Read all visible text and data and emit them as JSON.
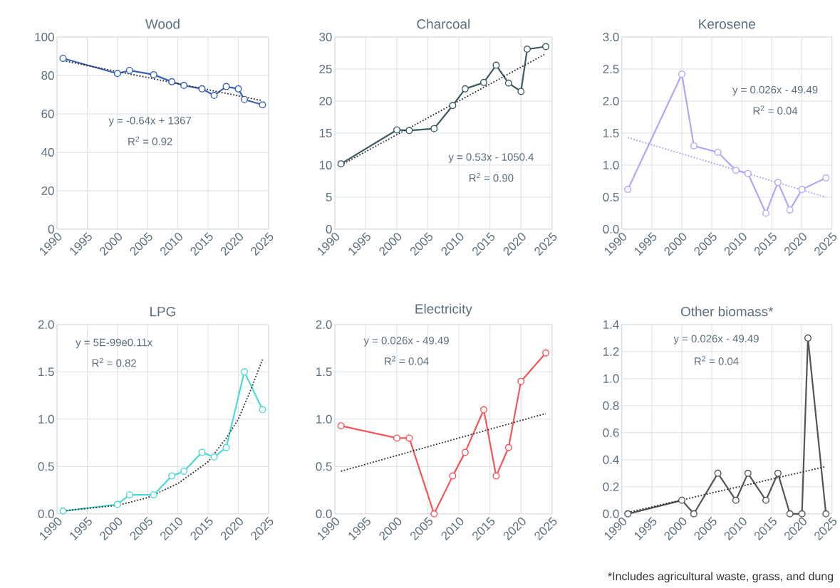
{
  "chart_data": [
    {
      "type": "line",
      "title": "Wood",
      "xlim": [
        1990,
        2025
      ],
      "xticks": [
        1990,
        1995,
        2000,
        2005,
        2010,
        2015,
        2020,
        2025
      ],
      "ylim": [
        0,
        100
      ],
      "yticks": [
        0,
        20,
        40,
        60,
        80,
        100
      ],
      "grid": true,
      "marker": "circle",
      "annotations": [
        "y = -0.64x + 1367",
        "R$^{2}$ = 0.92"
      ],
      "series": [
        {
          "color": "#3a62b0",
          "x": [
            1991,
            2000,
            2002,
            2006,
            2009,
            2011,
            2014,
            2016,
            2018,
            2020,
            2021,
            2024
          ],
          "values": [
            88.9,
            81,
            82.6,
            80.4,
            76.7,
            74.8,
            73,
            69.6,
            74.2,
            73,
            67.5,
            64.7
          ]
        },
        {
          "type": "line",
          "color": "#2b2b2b",
          "line_style": "dotted",
          "marker": "none",
          "x": [
            1991,
            2024
          ],
          "values": [
            87.7,
            66.9
          ]
        }
      ]
    },
    {
      "type": "line",
      "title": "Charcoal",
      "xlim": [
        1990,
        2025
      ],
      "xticks": [
        1990,
        1995,
        2000,
        2005,
        2010,
        2015,
        2020,
        2025
      ],
      "ylim": [
        0,
        30
      ],
      "yticks": [
        0,
        5,
        10,
        15,
        20,
        25,
        30
      ],
      "grid": true,
      "marker": "circle",
      "annotations": [
        "y = 0.53x - 1050.4",
        "R$^{2}$ = 0.90"
      ],
      "series": [
        {
          "color": "#3d5a63",
          "x": [
            1991,
            2000,
            2002,
            2006,
            2009,
            2011,
            2014,
            2016,
            2018,
            2020,
            2021,
            2024
          ],
          "values": [
            10.2,
            15.5,
            15.4,
            15.7,
            19.3,
            21.9,
            22.9,
            25.6,
            22.8,
            21.5,
            28.1,
            28.5
          ]
        },
        {
          "type": "line",
          "color": "#2b2b2b",
          "line_style": "dotted",
          "marker": "none",
          "x": [
            1991,
            2024
          ],
          "values": [
            10,
            27.4
          ]
        }
      ]
    },
    {
      "type": "line",
      "title": "Kerosene",
      "xlim": [
        1990,
        2025
      ],
      "xticks": [
        1990,
        1995,
        2000,
        2005,
        2010,
        2015,
        2020,
        2025
      ],
      "ylim": [
        0,
        3
      ],
      "yticks": [
        {
          "value": 0,
          "label": "0.0"
        },
        0.5,
        {
          "value": 1,
          "label": "1.0"
        },
        1.5,
        {
          "value": 2,
          "label": "2.0"
        },
        2.5,
        {
          "value": 3,
          "label": "3.0"
        }
      ],
      "grid": true,
      "marker": "circle",
      "annotations": [
        "y = 0.026x - 49.49",
        "R$^{2}$ = 0.04"
      ],
      "series": [
        {
          "color": "#b3a6f5",
          "x": [
            1991,
            2000,
            2002,
            2006,
            2009,
            2011,
            2014,
            2016,
            2018,
            2020,
            2024
          ],
          "values": [
            0.62,
            2.42,
            1.3,
            1.2,
            0.92,
            0.87,
            0.25,
            0.73,
            0.3,
            0.62,
            0.8
          ]
        },
        {
          "type": "line",
          "color": "#a99cf0",
          "line_style": "dotted",
          "marker": "none",
          "x": [
            1991,
            2024
          ],
          "values": [
            1.43,
            0.5
          ]
        }
      ]
    },
    {
      "type": "line",
      "title": "LPG",
      "xlim": [
        1990,
        2025
      ],
      "xticks": [
        1990,
        1995,
        2000,
        2005,
        2010,
        2015,
        2020,
        2025
      ],
      "ylim": [
        0,
        2
      ],
      "yticks": [
        {
          "value": 0,
          "label": "0.0"
        },
        0.5,
        {
          "value": 1,
          "label": "1.0"
        },
        1.5,
        {
          "value": 2,
          "label": "2.0"
        }
      ],
      "grid": true,
      "marker": "circle",
      "annotations": [
        "y = 5E-99e0.11x",
        "R$^{2}$ = 0.82"
      ],
      "series": [
        {
          "color": "#4fd8d3",
          "x": [
            1991,
            2000,
            2002,
            2006,
            2009,
            2011,
            2014,
            2016,
            2018,
            2021,
            2024
          ],
          "values": [
            0.03,
            0.1,
            0.2,
            0.2,
            0.4,
            0.45,
            0.65,
            0.6,
            0.7,
            1.5,
            1.1
          ]
        },
        {
          "type": "line",
          "color": "#2b2b2b",
          "line_style": "dotted",
          "marker": "none",
          "x": [
            1991,
            2000,
            2005,
            2010,
            2015,
            2018,
            2020,
            2022,
            2024
          ],
          "values": [
            0.03,
            0.09,
            0.17,
            0.32,
            0.55,
            0.8,
            1.0,
            1.3,
            1.63
          ]
        }
      ]
    },
    {
      "type": "line",
      "title": "Electricity",
      "xlim": [
        1990,
        2025
      ],
      "xticks": [
        1990,
        1995,
        2000,
        2005,
        2010,
        2015,
        2020,
        2025
      ],
      "ylim": [
        0,
        2
      ],
      "yticks": [
        {
          "value": 0,
          "label": "0.0"
        },
        0.5,
        {
          "value": 1,
          "label": "1.0"
        },
        1.5,
        {
          "value": 2,
          "label": "2.0"
        }
      ],
      "grid": true,
      "marker": "circle",
      "annotations": [
        "y = 0.026x - 49.49",
        "R$^{2}$ = 0.04"
      ],
      "series": [
        {
          "color": "#f4555a",
          "x": [
            1991,
            2000,
            2002,
            2006,
            2009,
            2011,
            2014,
            2016,
            2018,
            2020,
            2024
          ],
          "values": [
            0.93,
            0.8,
            0.8,
            0,
            0.4,
            0.65,
            1.1,
            0.4,
            0.7,
            1.4,
            1.7
          ]
        },
        {
          "type": "line",
          "color": "#2b2b2b",
          "line_style": "dotted",
          "marker": "none",
          "x": [
            1991,
            2024
          ],
          "values": [
            0.45,
            1.06
          ]
        }
      ]
    },
    {
      "type": "line",
      "title": "Other biomass*",
      "xlim": [
        1990,
        2025
      ],
      "xticks": [
        1990,
        1995,
        2000,
        2005,
        2010,
        2015,
        2020,
        2025
      ],
      "ylim": [
        0,
        1.4
      ],
      "yticks": [
        {
          "value": 0,
          "label": "0.0"
        },
        0.2,
        0.4,
        0.6,
        0.8,
        {
          "value": 1,
          "label": "1.0"
        },
        1.2,
        1.4
      ],
      "grid": true,
      "marker": "circle",
      "annotations": [
        "y = 0.026x - 49.49",
        "R$^{2}$ = 0.04",
        "*Includes agricultural waste, grass, and dung"
      ],
      "series": [
        {
          "color": "#555555",
          "x": [
            1991,
            2000,
            2002,
            2006,
            2009,
            2011,
            2014,
            2016,
            2018,
            2020,
            2021,
            2024
          ],
          "values": [
            0,
            0.1,
            0,
            0.3,
            0.1,
            0.3,
            0.1,
            0.3,
            0,
            0,
            1.3,
            0
          ]
        },
        {
          "type": "line",
          "color": "#2b2b2b",
          "line_style": "dotted",
          "marker": "none",
          "x": [
            1991,
            2024
          ],
          "values": [
            0.01,
            0.35
          ]
        }
      ]
    }
  ]
}
